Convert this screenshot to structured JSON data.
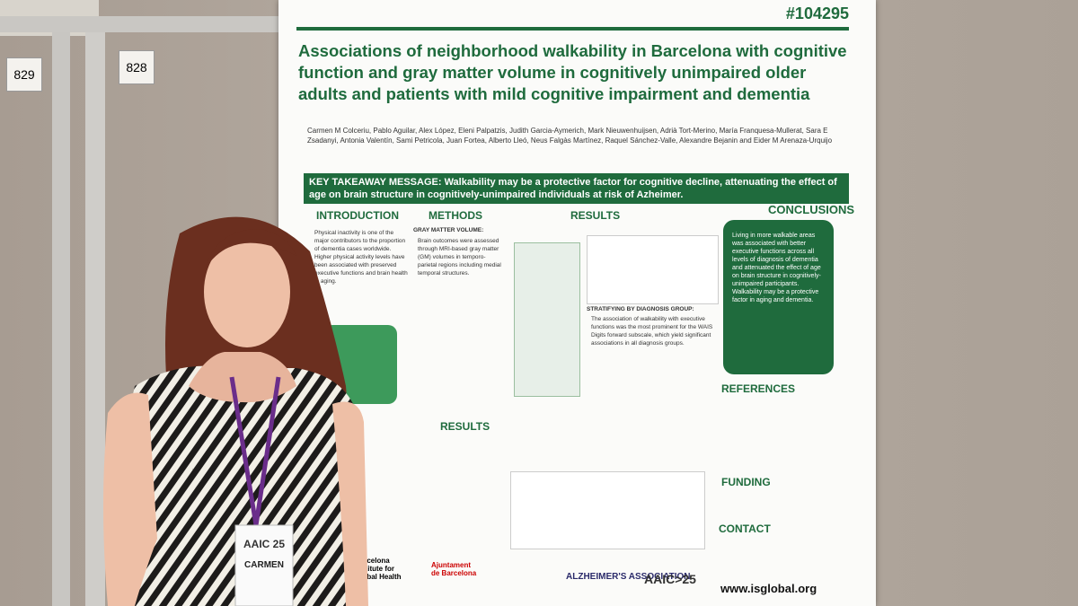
{
  "booths": [
    "829",
    "828"
  ],
  "poster": {
    "id": "#104295",
    "title": "Associations of neighborhood walkability in Barcelona with cognitive function and gray matter volume in cognitively unimpaired older adults and patients with mild cognitive impairment and dementia",
    "authors": "Carmen M Colceriu, Pablo Aguilar, Alex López, Eleni Palpatzis, Judith Garcia-Aymerich, Mark Nieuwenhuijsen, Adrià Tort-Merino, María Franquesa-Mullerat, Sara E Zsadanyi, Antonia Valentín, Sami Petricola, Juan Fortea, Alberto Lleó, Neus Falgàs Martínez, Raquel Sánchez-Valle, Alexandre Bejanin and Eider M Arenaza-Urquijo",
    "takeaway": "KEY TAKEAWAY MESSAGE: Walkability may be a protective factor for cognitive decline, attenuating the effect of age on brain structure in cognitively-unimpaired individuals at risk of Azheimer.",
    "sections": {
      "introduction": "INTRODUCTION",
      "methods": "METHODS",
      "results": "RESULTS",
      "results2": "RESULTS",
      "conclusions": "CONCLUSIONS",
      "references": "REFERENCES",
      "funding": "FUNDING",
      "contact": "CONTACT"
    },
    "intro_text": "Physical inactivity is one of the major contributors to the proportion of dementia cases worldwide. Higher physical activity levels have been associated with preserved executive functions and brain health in aging.",
    "methods_heading": "GRAY MATTER VOLUME:",
    "methods_text": "Brain outcomes were assessed through MRI-based gray matter (GM) volumes in temporo-parietal regions including medial temporal structures.",
    "results_heading": "STRATIFYING BY DIAGNOSIS GROUP:",
    "results_text": "The association of walkability with executive functions was the most prominent for the WAIS Digits forward subscale, which yield significant associations in all diagnosis groups.",
    "conclusions_text": "Living in more walkable areas was associated with better executive functions across all levels of diagnosis of dementia and attenuated the effect of age on brain structure in cognitively-unimpaired participants. Walkability may be a protective factor in aging and dementia.",
    "website": "www.isglobal.org",
    "logos": [
      "Barcelona Institute for Global Health",
      "Ajuntament de Barcelona",
      "ALZHEIMER'S ASSOCIATION",
      "AAIC>25"
    ]
  },
  "badge": {
    "event": "AAIC 25",
    "name": "CARMEN"
  }
}
